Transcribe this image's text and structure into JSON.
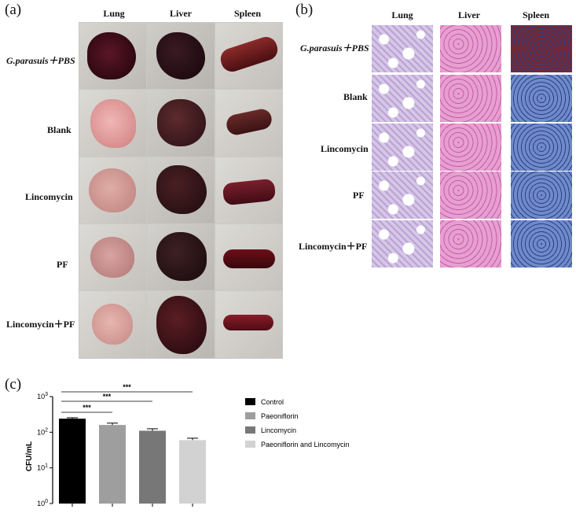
{
  "panels": {
    "a": "(a)",
    "b": "(b)",
    "c": "(c)"
  },
  "columns": [
    "Lung",
    "Liver",
    "Spleen"
  ],
  "groups": [
    "G.parasuis＋PBS",
    "Blank",
    "Lincomycin",
    "PF",
    "Lincomycin＋PF"
  ],
  "histology_colors": {
    "lung": "#d7c7e6",
    "liver": "#e79fd0",
    "spleen_infected": "#6e2a3a",
    "spleen_normal": "#6f8ac8"
  },
  "chart_data": {
    "type": "bar",
    "categories": [
      "Control",
      "Paeoniflorin",
      "Lincomycin",
      "Paeoniflorin and Lincomycin"
    ],
    "values": [
      240,
      160,
      110,
      60
    ],
    "errors": [
      15,
      20,
      15,
      8
    ],
    "ylabel": "CFU/mL",
    "yscale": "log",
    "ylim": [
      1,
      1000
    ],
    "yticks": [
      {
        "base": "10",
        "exp": "0"
      },
      {
        "base": "10",
        "exp": "1"
      },
      {
        "base": "10",
        "exp": "2"
      },
      {
        "base": "10",
        "exp": "3"
      }
    ],
    "colors": [
      "#000000",
      "#9e9e9e",
      "#777777",
      "#d2d2d2"
    ],
    "significance": [
      "***",
      "***",
      "***"
    ],
    "legend": [
      "Control",
      "Paeoniflorin",
      "Lincomycin",
      "Paeoniflorin and Lincomycin"
    ]
  }
}
